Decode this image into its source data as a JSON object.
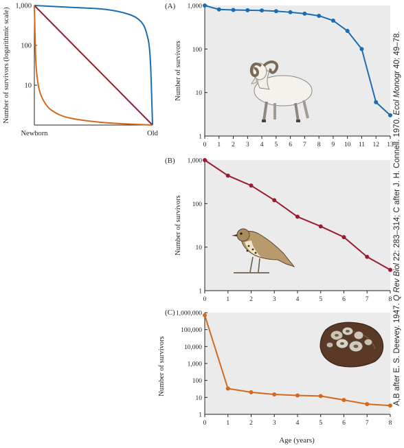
{
  "credit": {
    "prefix": "A,B after E. S. Deevey. 1947.",
    "journal1": "Q Rev Biol",
    "mid": "22: 283–314; C after J. H. Connell. 1970.",
    "journal2": "Ecol Monogr",
    "suffix": "40: 49–78."
  },
  "colors": {
    "panel_bg": "#ebebeb",
    "blue": "#1a6cb3",
    "red": "#9b1b30",
    "orange": "#d2691e"
  },
  "illustrations": {
    "A": "bighorn-ram",
    "B": "songbird-thrush",
    "C": "barnacles-on-rock"
  },
  "chart_data": [
    {
      "id": "overview",
      "type": "line",
      "title": "",
      "xlabel": "",
      "ylabel": "Number of survivors (logarithmic scale)",
      "yscale": "log",
      "ylim": [
        1,
        1000
      ],
      "yticks": [
        {
          "value": 1000,
          "label": "1,000"
        },
        {
          "value": 100,
          "label": "100"
        },
        {
          "value": 10,
          "label": "10"
        }
      ],
      "xticks": [
        {
          "value": 0,
          "label": "Newborn"
        },
        {
          "value": 1,
          "label": "Old"
        }
      ],
      "xlim": [
        0,
        1
      ],
      "grid": false,
      "series": [
        {
          "color": "#1a6cb3",
          "x": [
            0,
            0.3,
            0.6,
            0.8,
            0.9,
            0.95,
            0.98,
            1.0
          ],
          "y": [
            1000,
            900,
            800,
            600,
            400,
            200,
            50,
            1
          ]
        },
        {
          "color": "#9b1b30",
          "x": [
            0,
            1
          ],
          "y": [
            1000,
            1
          ]
        },
        {
          "color": "#d2691e",
          "x": [
            0,
            0.01,
            0.02,
            0.04,
            0.08,
            0.15,
            0.3,
            0.6,
            1.0
          ],
          "y": [
            1000,
            60,
            20,
            8,
            4,
            2.3,
            1.5,
            1.15,
            1
          ]
        }
      ]
    },
    {
      "id": "A",
      "label": "(A)",
      "type": "line",
      "title": "",
      "xlabel": "",
      "ylabel": "Number of survivors",
      "yscale": "log",
      "ylim": [
        1,
        1000
      ],
      "yticks": [
        {
          "value": 1000,
          "label": "1,000"
        },
        {
          "value": 100,
          "label": "100"
        },
        {
          "value": 10,
          "label": "10"
        },
        {
          "value": 1,
          "label": "1"
        }
      ],
      "xlim": [
        0,
        13
      ],
      "xticks": [
        0,
        1,
        2,
        3,
        4,
        5,
        6,
        7,
        8,
        9,
        10,
        11,
        12,
        13
      ],
      "grid": false,
      "series": [
        {
          "color": "#1a6cb3",
          "x": [
            0,
            1,
            2,
            3,
            4,
            5,
            6,
            7,
            8,
            9,
            10,
            11,
            12,
            13
          ],
          "y": [
            1000,
            810,
            790,
            780,
            770,
            740,
            700,
            650,
            580,
            450,
            260,
            100,
            6,
            3
          ]
        }
      ]
    },
    {
      "id": "B",
      "label": "(B)",
      "type": "line",
      "title": "",
      "xlabel": "",
      "ylabel": "Number of survivors",
      "yscale": "log",
      "ylim": [
        1,
        1000
      ],
      "yticks": [
        {
          "value": 1000,
          "label": "1,000"
        },
        {
          "value": 100,
          "label": "100"
        },
        {
          "value": 10,
          "label": "10"
        },
        {
          "value": 1,
          "label": "1"
        }
      ],
      "xlim": [
        0,
        8
      ],
      "xticks": [
        0,
        1,
        2,
        3,
        4,
        5,
        6,
        7,
        8
      ],
      "grid": false,
      "series": [
        {
          "color": "#9b1b30",
          "x": [
            0,
            1,
            2,
            3,
            4,
            5,
            6,
            7,
            8
          ],
          "y": [
            1000,
            440,
            260,
            120,
            50,
            30,
            17,
            6,
            3
          ]
        }
      ]
    },
    {
      "id": "C",
      "label": "(C)",
      "type": "line",
      "title": "",
      "xlabel": "Age (years)",
      "ylabel": "Number of survivors",
      "yscale": "log",
      "ylim": [
        1,
        1000000
      ],
      "yticks": [
        {
          "value": 1000000,
          "label": "1,000,000"
        },
        {
          "value": 100000,
          "label": "100,000"
        },
        {
          "value": 10000,
          "label": "10,000"
        },
        {
          "value": 1000,
          "label": "1,000"
        },
        {
          "value": 100,
          "label": "100"
        },
        {
          "value": 10,
          "label": "10"
        },
        {
          "value": 1,
          "label": "1"
        }
      ],
      "xlim": [
        0,
        8
      ],
      "xticks": [
        0,
        1,
        2,
        3,
        4,
        5,
        6,
        7,
        8
      ],
      "grid": false,
      "series": [
        {
          "color": "#d2691e",
          "x": [
            0,
            1,
            2,
            3,
            4,
            5,
            6,
            7,
            8
          ],
          "y": [
            700000,
            33,
            20,
            15,
            13,
            12,
            7,
            4,
            3.3
          ]
        }
      ]
    }
  ]
}
